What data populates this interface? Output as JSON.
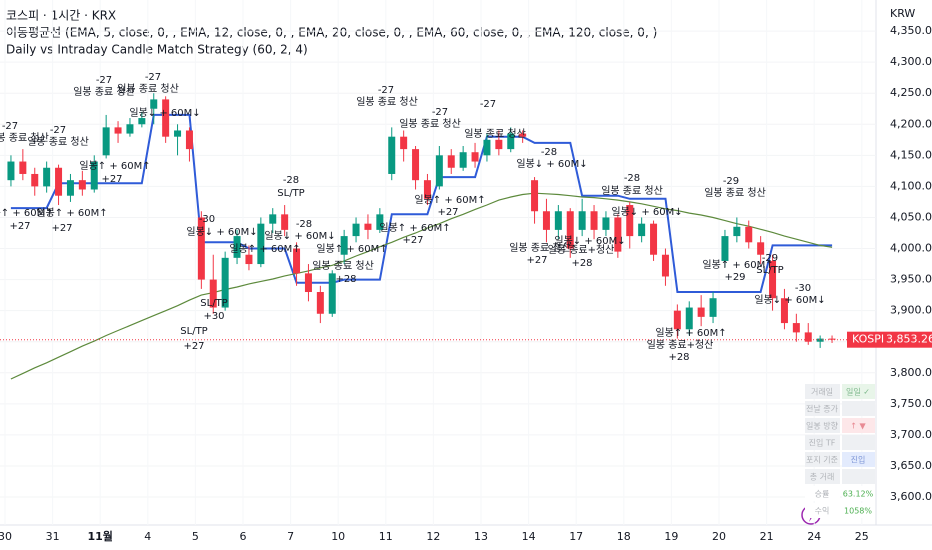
{
  "header": {
    "symbol": "코스피 · 1시간 · KRX",
    "indicator": "이동평균선 (EMA, 5, close, 0, , EMA, 12, close, 0, , EMA, 20, close, 0, , EMA, 60, close, 0, , EMA, 120, close, 0, )",
    "strategy": "Daily vs Intraday Candle Match Strategy (60, 2, 4)"
  },
  "chart_data": {
    "type": "candlestick",
    "y_axis_label": "KRW",
    "categories": [
      "30",
      null,
      null,
      null,
      "31",
      null,
      null,
      null,
      "11월",
      null,
      null,
      null,
      "4",
      null,
      null,
      null,
      "5",
      null,
      null,
      null,
      "6",
      null,
      null,
      null,
      "7",
      null,
      null,
      null,
      "10",
      null,
      null,
      null,
      "11",
      null,
      null,
      null,
      "12",
      null,
      null,
      null,
      "13",
      null,
      null,
      null,
      "14",
      null,
      null,
      null,
      "17",
      null,
      null,
      null,
      "18",
      null,
      null,
      null,
      "19",
      null,
      null,
      null,
      "20",
      null,
      null,
      null,
      "21",
      null,
      null,
      null,
      "24",
      null,
      null,
      null,
      "25",
      null,
      null,
      null
    ],
    "open": [
      4110,
      4140,
      4120,
      4100,
      4130,
      4085,
      4110,
      4095,
      4150,
      4195,
      4185,
      4200,
      4225,
      4240,
      4180,
      4190,
      4050,
      3950,
      3905,
      3985,
      3990,
      3975,
      4040,
      4055,
      4000,
      3960,
      3930,
      3895,
      3990,
      4020,
      4040,
      4030,
      4120,
      4180,
      4160,
      4110,
      4100,
      4150,
      4130,
      4155,
      4150,
      4175,
      4160,
      4185,
      4110,
      4060,
      4030,
      4060,
      4030,
      4060,
      4030,
      4050,
      4070,
      4020,
      4040,
      3990,
      3900,
      3870,
      3905,
      3890,
      3980,
      4020,
      4035,
      4010,
      3980,
      3920,
      3880,
      3865,
      3850,
      3855,
      null,
      null,
      null,
      null,
      null,
      null
    ],
    "high": [
      4150,
      4160,
      4130,
      4140,
      4135,
      4120,
      4125,
      4150,
      4215,
      4205,
      4210,
      4220,
      4250,
      4245,
      4200,
      4195,
      4060,
      3990,
      3995,
      4030,
      4005,
      4050,
      4065,
      4070,
      4010,
      3975,
      3940,
      3965,
      4030,
      4050,
      4055,
      4065,
      4195,
      4190,
      4165,
      4120,
      4165,
      4160,
      4165,
      4170,
      4185,
      4190,
      4195,
      4190,
      4115,
      4080,
      4070,
      4065,
      4080,
      4070,
      4060,
      4055,
      4075,
      4050,
      4045,
      4000,
      3910,
      3915,
      3925,
      3930,
      4030,
      4050,
      4045,
      4020,
      3990,
      3935,
      3895,
      3880,
      3860,
      3860,
      null,
      null,
      null,
      null,
      null,
      null
    ],
    "low": [
      4100,
      4110,
      4085,
      4090,
      4070,
      4075,
      4085,
      4090,
      4145,
      4170,
      4180,
      4195,
      4200,
      4170,
      4150,
      4140,
      3935,
      3895,
      3900,
      3975,
      3965,
      3970,
      4025,
      4020,
      3940,
      3915,
      3880,
      3890,
      3975,
      4010,
      4015,
      4025,
      4110,
      4140,
      4095,
      4070,
      4095,
      4120,
      4125,
      4130,
      4140,
      4150,
      4155,
      4170,
      4040,
      4010,
      4015,
      3985,
      4020,
      4015,
      4020,
      3985,
      4000,
      4010,
      3980,
      3940,
      3855,
      3860,
      3875,
      3880,
      3970,
      4010,
      4000,
      3975,
      3900,
      3870,
      3850,
      3845,
      3840,
      3848,
      null,
      null,
      null,
      null,
      null,
      null
    ],
    "close": [
      4140,
      4120,
      4100,
      4130,
      4085,
      4110,
      4095,
      4140,
      4195,
      4185,
      4200,
      4210,
      4240,
      4180,
      4190,
      4160,
      3950,
      3905,
      3985,
      4020,
      3975,
      4040,
      4055,
      4030,
      3960,
      3930,
      3895,
      3960,
      4020,
      4040,
      4030,
      4055,
      4180,
      4160,
      4110,
      4080,
      4150,
      4130,
      4155,
      4140,
      4175,
      4160,
      4185,
      4180,
      4060,
      4030,
      4060,
      4000,
      4060,
      4030,
      4050,
      3995,
      4020,
      4040,
      3990,
      3955,
      3870,
      3905,
      3890,
      3920,
      4020,
      4035,
      4010,
      3990,
      3920,
      3880,
      3865,
      3850,
      3855,
      3853.26,
      null,
      null,
      null,
      null,
      null,
      null
    ],
    "up_color": "#089981",
    "down_color": "#f23645",
    "lines": [
      {
        "color": "#2f5bd8",
        "values": [
          4065,
          4065,
          4065,
          4065,
          4105,
          4105,
          4105,
          4105,
          4105,
          4105,
          4105,
          4105,
          4215,
          4215,
          4215,
          4215,
          4010,
          4010,
          4010,
          4010,
          4000,
          4000,
          4000,
          4000,
          3945,
          3945,
          3945,
          3945,
          3950,
          3950,
          3950,
          3950,
          4055,
          4055,
          4055,
          4055,
          4115,
          4115,
          4115,
          4115,
          4180,
          4180,
          4180,
          4180,
          4170,
          4170,
          4170,
          4170,
          4085,
          4085,
          4085,
          4085,
          4080,
          4080,
          4080,
          4080,
          3930,
          3930,
          3930,
          3930,
          3930,
          3930,
          3930,
          3930,
          4005,
          4005,
          4005,
          4005,
          4005,
          4005,
          null,
          null,
          null,
          null,
          null,
          null
        ]
      },
      {
        "color": "#5d8a3c",
        "values": [
          3790,
          3799,
          3808,
          3816,
          3825,
          3834,
          3843,
          3851,
          3860,
          3868,
          3876,
          3884,
          3892,
          3900,
          3908,
          3917,
          3925,
          3929,
          3934,
          3938,
          3943,
          3947,
          3951,
          3956,
          3960,
          3964,
          3969,
          3973,
          3980,
          3988,
          3995,
          4003,
          4010,
          4018,
          4025,
          4033,
          4040,
          4048,
          4055,
          4063,
          4070,
          4078,
          4083,
          4087,
          4089,
          4088,
          4087,
          4085,
          4083,
          4082,
          4080,
          4078,
          4075,
          4072,
          4068,
          4064,
          4061,
          4057,
          4054,
          4050,
          4045,
          4040,
          4036,
          4031,
          4026,
          4020,
          4015,
          4010,
          4005,
          4002,
          null,
          null,
          null,
          null,
          null,
          null
        ]
      }
    ],
    "ylim": [
      3555,
      4400
    ],
    "yticks": [
      {
        "value": 3600,
        "label": "3,600.00"
      },
      {
        "value": 3650,
        "label": "3,650.00"
      },
      {
        "value": 3700,
        "label": "3,700.00"
      },
      {
        "value": 3750,
        "label": "3,750.00"
      },
      {
        "value": 3800,
        "label": "3,800.00"
      },
      {
        "value": 3850,
        "label": "3,850.00"
      },
      {
        "value": 3900,
        "label": "3,900.00"
      },
      {
        "value": 3950,
        "label": "3,950.00"
      },
      {
        "value": 4000,
        "label": "4,000.00"
      },
      {
        "value": 4050,
        "label": "4,050.00"
      },
      {
        "value": 4100,
        "label": "4,100.00"
      },
      {
        "value": 4150,
        "label": "4,150.00"
      },
      {
        "value": 4200,
        "label": "4,200.00"
      },
      {
        "value": 4250,
        "label": "4,250.00"
      },
      {
        "value": 4300,
        "label": "4,300.00"
      },
      {
        "value": 4350,
        "label": "4,350.00"
      }
    ],
    "last_price": {
      "name": "KOSPI",
      "value": 3853.26,
      "label": "3,853.26"
    },
    "annotations": [
      "-27",
      "일봉 종료 청산",
      "-27",
      "일봉 종료 청산",
      "-27",
      "일봉 종료 청산",
      "-27",
      "일봉 종료 청산",
      "일봉↑ + 60M↑",
      "+27",
      "일봉↓ + 60M↓",
      "일봉↑ + 60M↑",
      "+27",
      "일봉↑ + 60M↑",
      "+27",
      "-30",
      "일봉↓ + 60M↓",
      "SL/TP",
      "+30",
      "SL/TP",
      "+27",
      "-28",
      "SL/TP",
      "-28",
      "일봉↑ + 60M↑",
      "일봉↓ + 60M↓",
      "일봉 종료 청산",
      "+28",
      "-27",
      "일봉 종료 청산",
      "-27",
      "일봉 종료 청산",
      "-27",
      "일봉 종료 청산",
      "일봉↑ + 60M↑",
      "일봉↑ + 60M↑",
      "+27",
      "일봉↑ + 60M↑",
      "+27",
      "-28",
      "일봉↓ + 60M↓",
      "일봉 종료 청산",
      "+27",
      "일봉 종료+청산",
      "+28",
      "일봉↓ + 60M↓",
      "-28",
      "일봉 종료 청산",
      "일봉↓ + 60M↓",
      "-29",
      "일봉 종료 청산",
      "일봉↑ + 60M↑",
      "일봉 종료+청산",
      "+28",
      "일봉↑ + 60M↑",
      "+29",
      "-29",
      "SL/TP",
      "-30",
      "일봉↓ + 60M↓"
    ]
  },
  "table": {
    "rows": [
      [
        "거래일",
        "일일 ✓"
      ],
      [
        "전날 종가"
      ],
      [
        "일봉 방향",
        "↑ ▼"
      ],
      [
        "진입 TF"
      ],
      [
        "포지 기준",
        "진입"
      ],
      [
        "총 거래"
      ],
      [
        "승률",
        "63.12%"
      ],
      [
        "수익",
        "1058%"
      ]
    ]
  }
}
